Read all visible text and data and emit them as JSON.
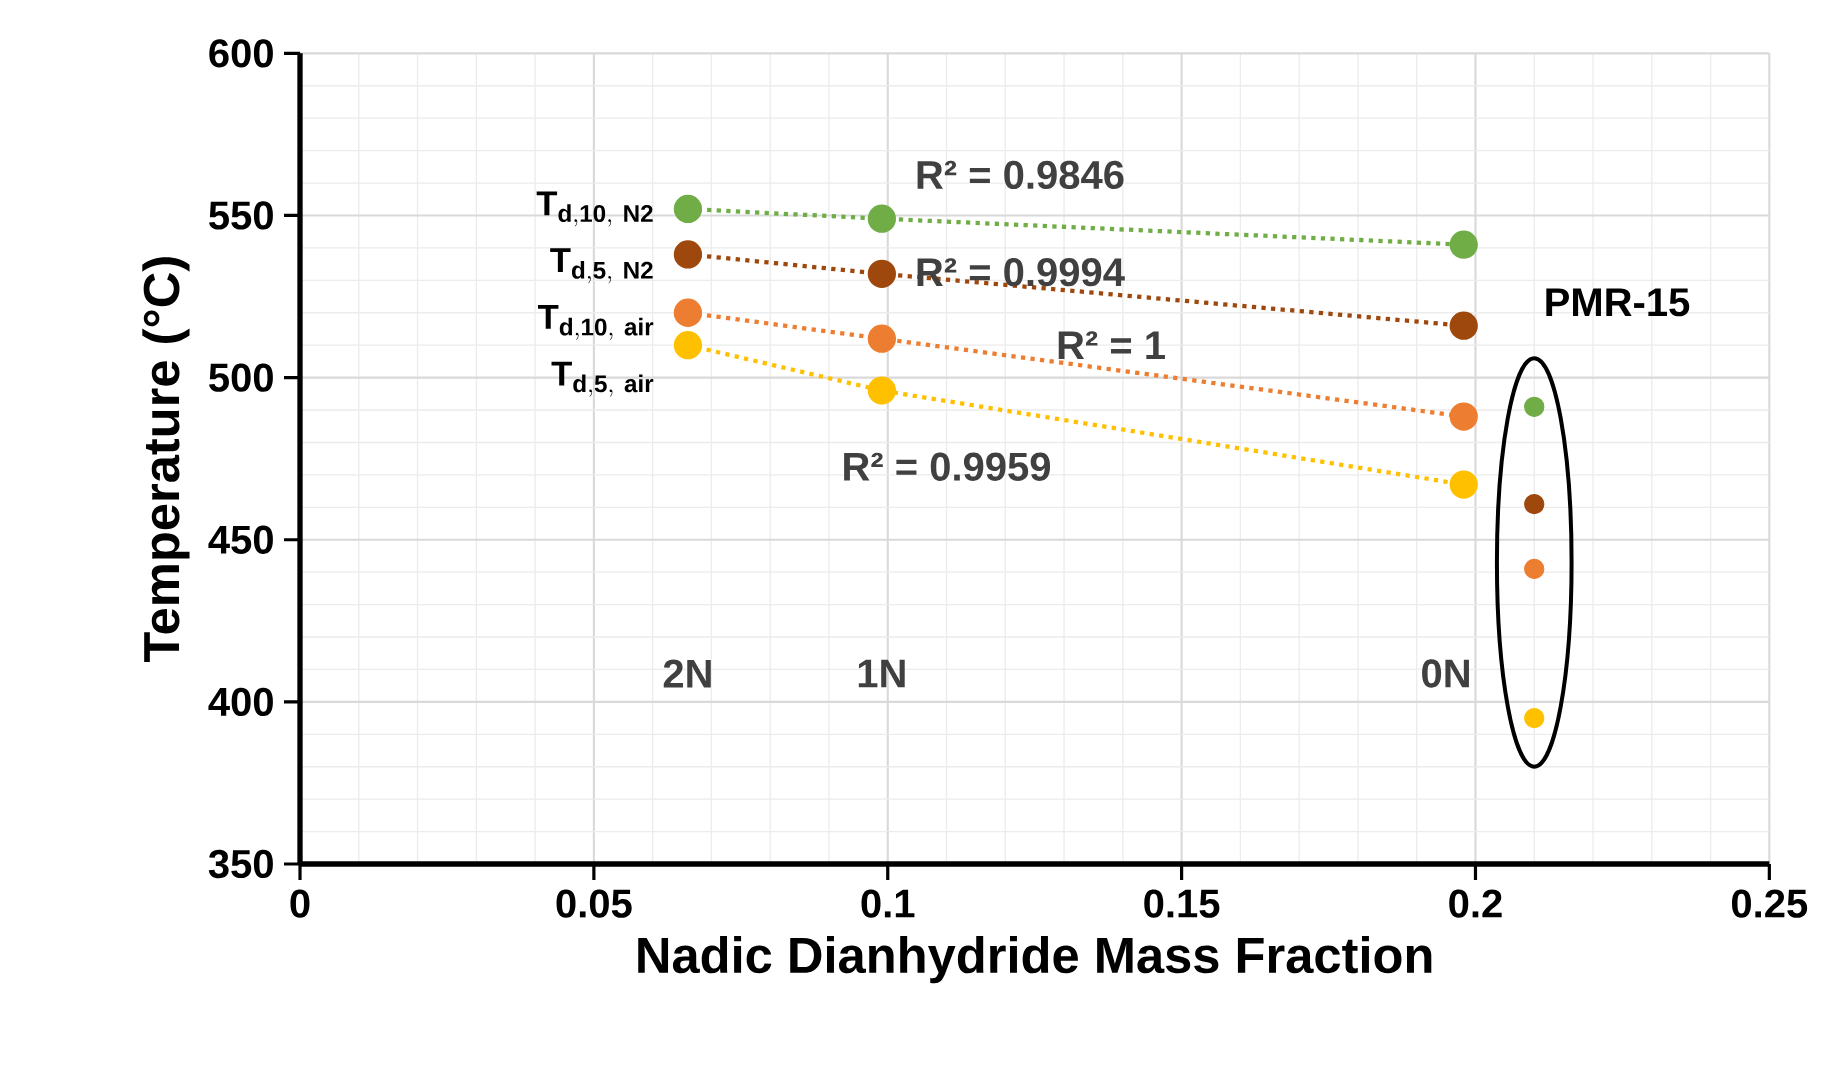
{
  "chart_data": {
    "type": "line",
    "xlabel": "Nadic Dianhydride Mass Fraction",
    "ylabel": "Temperature (°C)",
    "xlim": [
      0,
      0.25
    ],
    "xticks": [
      0,
      0.05,
      0.1,
      0.15,
      0.2,
      0.25
    ],
    "ylim": [
      350,
      600
    ],
    "yticks": [
      350,
      400,
      450,
      500,
      550,
      600
    ],
    "grid": true,
    "marker": "circle",
    "line_style": "dotted",
    "series": [
      {
        "name": "\\mathbf{T}_{\\mathbf{d,10,\\ N2}}",
        "color": "#70ad47",
        "x": [
          0.066,
          0.099,
          0.198
        ],
        "values": [
          552,
          549,
          541
        ]
      },
      {
        "name": "\\mathbf{T}_{\\mathbf{d,5,\\ N2}}",
        "color": "#9e480e",
        "x": [
          0.066,
          0.099,
          0.198
        ],
        "values": [
          538,
          532,
          516
        ]
      },
      {
        "name": "\\mathbf{T}_{\\mathbf{d,10,\\ air}}",
        "color": "#ed7d31",
        "x": [
          0.066,
          0.099,
          0.198
        ],
        "values": [
          520,
          512,
          488
        ]
      },
      {
        "name": "\\mathbf{T}_{\\mathbf{d,5,\\ air}}",
        "color": "#ffc000",
        "x": [
          0.066,
          0.099,
          0.198
        ],
        "values": [
          510,
          496,
          467
        ]
      },
      {
        "name": "PMR-15",
        "type": "scatter",
        "x": [
          0.21,
          0.21,
          0.21,
          0.21
        ],
        "values": [
          491,
          461,
          441,
          395
        ],
        "colors": [
          "#70ad47",
          "#9e480e",
          "#ed7d31",
          "#ffc000"
        ]
      }
    ],
    "annotations": [
      "R² = 0.9846",
      "R² = 0.9994",
      "R² = 1",
      "R² = 0.9959",
      "2N",
      "1N",
      "0N"
    ]
  }
}
